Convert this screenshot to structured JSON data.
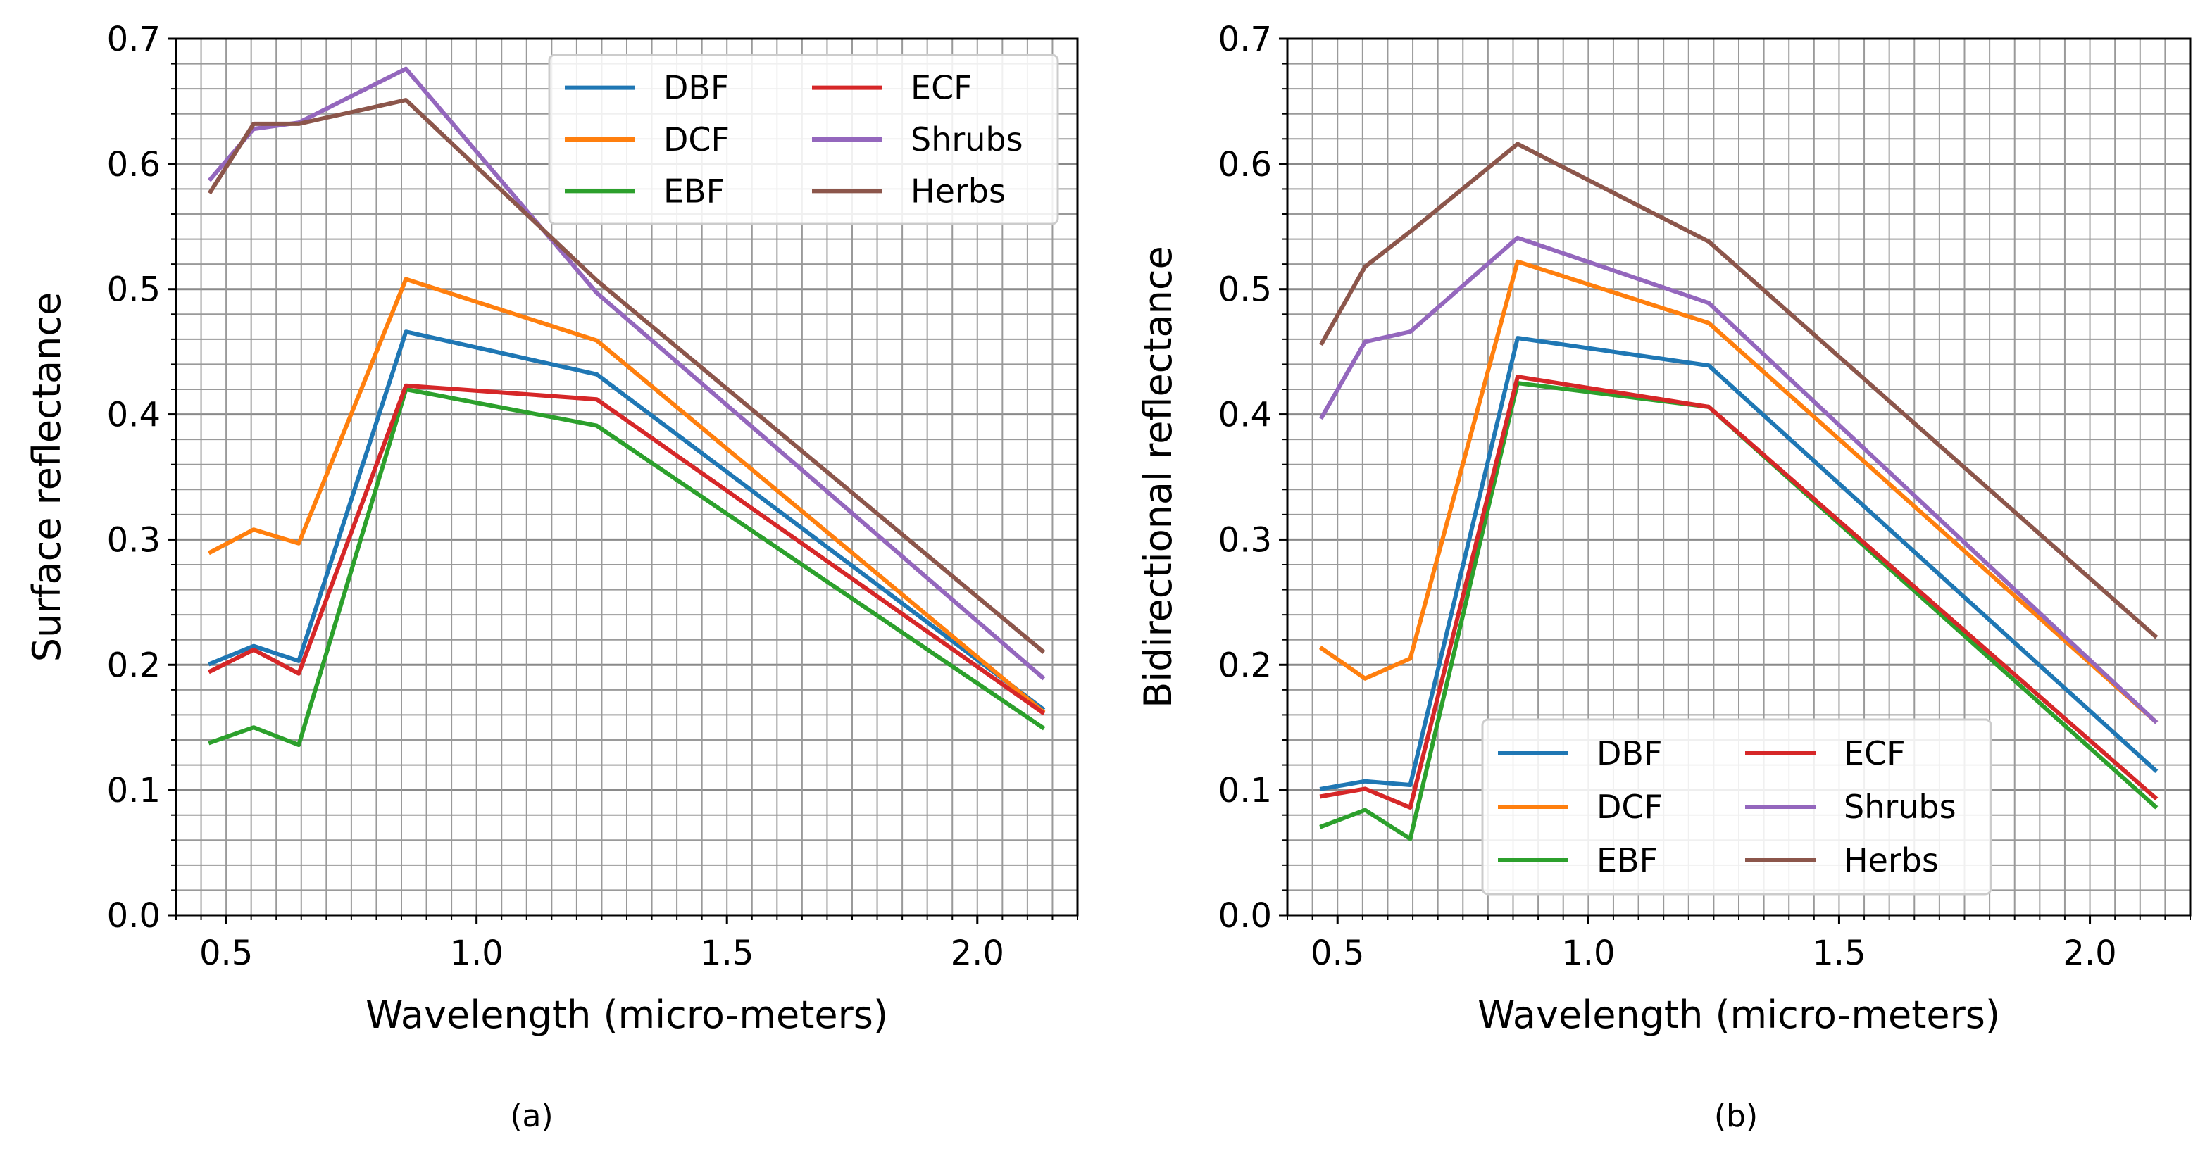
{
  "figure": {
    "captions": [
      "(a)",
      "(b)"
    ]
  },
  "colors": {
    "DBF": "#1f77b4",
    "DCF": "#ff7f0e",
    "EBF": "#2ca02c",
    "ECF": "#d62728",
    "Shrubs": "#9467bd",
    "Herbs": "#8c564b",
    "grid": "#b0b0b0",
    "axis": "#000000"
  },
  "chart_data": [
    {
      "type": "line",
      "title": "",
      "xlabel": "Wavelength (micro-meters)",
      "ylabel": "Surface reflectance",
      "xlim": [
        0.4,
        2.2
      ],
      "ylim": [
        0.0,
        0.7
      ],
      "xticks": [
        0.5,
        1.0,
        1.5,
        2.0
      ],
      "xtick_labels": [
        "0.5",
        "1.0",
        "1.5",
        "2.0"
      ],
      "yticks": [
        0.0,
        0.1,
        0.2,
        0.3,
        0.4,
        0.5,
        0.6,
        0.7
      ],
      "ytick_labels": [
        "0.0",
        "0.1",
        "0.2",
        "0.3",
        "0.4",
        "0.5",
        "0.6",
        "0.7"
      ],
      "grid": true,
      "legend": {
        "placement": "top-right",
        "columns": 2
      },
      "x": [
        0.469,
        0.555,
        0.645,
        0.859,
        1.24,
        2.13
      ],
      "series": [
        {
          "name": "DBF",
          "values": [
            0.201,
            0.215,
            0.203,
            0.466,
            0.432,
            0.165
          ]
        },
        {
          "name": "DCF",
          "values": [
            0.29,
            0.308,
            0.297,
            0.508,
            0.459,
            0.163
          ]
        },
        {
          "name": "EBF",
          "values": [
            0.138,
            0.15,
            0.136,
            0.42,
            0.391,
            0.15
          ]
        },
        {
          "name": "ECF",
          "values": [
            0.195,
            0.212,
            0.193,
            0.423,
            0.412,
            0.162
          ]
        },
        {
          "name": "Shrubs",
          "values": [
            0.588,
            0.628,
            0.633,
            0.676,
            0.497,
            0.19
          ]
        },
        {
          "name": "Herbs",
          "values": [
            0.578,
            0.632,
            0.632,
            0.651,
            0.507,
            0.211
          ]
        }
      ]
    },
    {
      "type": "line",
      "title": "",
      "xlabel": "Wavelength (micro-meters)",
      "ylabel": "Bidirectional reflectance",
      "xlim": [
        0.4,
        2.2
      ],
      "ylim": [
        0.0,
        0.7
      ],
      "xticks": [
        0.5,
        1.0,
        1.5,
        2.0
      ],
      "xtick_labels": [
        "0.5",
        "1.0",
        "1.5",
        "2.0"
      ],
      "yticks": [
        0.0,
        0.1,
        0.2,
        0.3,
        0.4,
        0.5,
        0.6,
        0.7
      ],
      "ytick_labels": [
        "0.0",
        "0.1",
        "0.2",
        "0.3",
        "0.4",
        "0.5",
        "0.6",
        "0.7"
      ],
      "grid": true,
      "legend": {
        "placement": "bottom-right",
        "columns": 2
      },
      "x": [
        0.469,
        0.555,
        0.645,
        0.859,
        1.24,
        2.13
      ],
      "series": [
        {
          "name": "DBF",
          "values": [
            0.101,
            0.107,
            0.104,
            0.461,
            0.439,
            0.116
          ]
        },
        {
          "name": "DCF",
          "values": [
            0.213,
            0.189,
            0.205,
            0.522,
            0.473,
            0.155
          ]
        },
        {
          "name": "EBF",
          "values": [
            0.071,
            0.084,
            0.061,
            0.425,
            0.406,
            0.087
          ]
        },
        {
          "name": "ECF",
          "values": [
            0.095,
            0.101,
            0.086,
            0.43,
            0.406,
            0.094
          ]
        },
        {
          "name": "Shrubs",
          "values": [
            0.398,
            0.458,
            0.466,
            0.541,
            0.489,
            0.155
          ]
        },
        {
          "name": "Herbs",
          "values": [
            0.457,
            0.518,
            0.546,
            0.616,
            0.538,
            0.223
          ]
        }
      ]
    }
  ]
}
